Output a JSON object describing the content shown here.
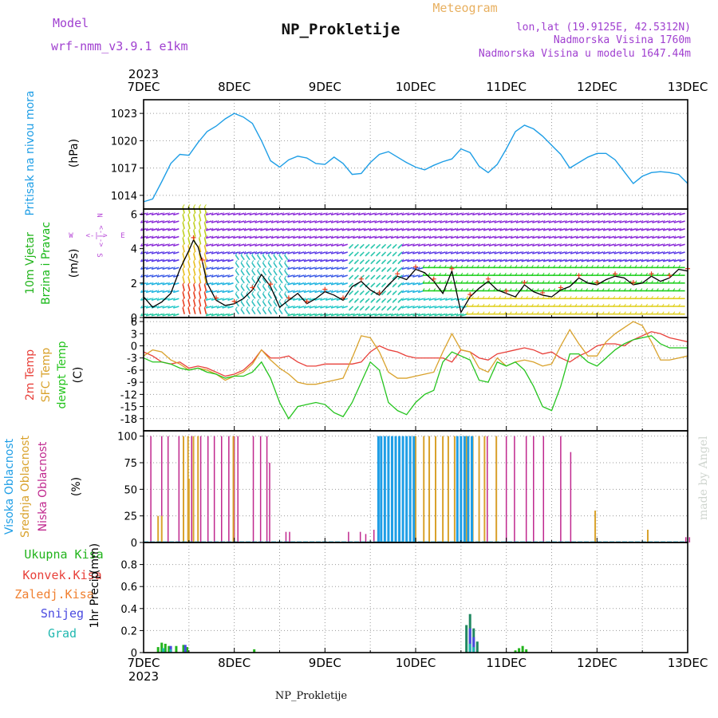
{
  "header": {
    "model_label": "Model",
    "model_name": "wrf-nmm_v3.9.1 e1km",
    "title": "NP_Prokletije",
    "subtitle": "Meteogram",
    "coords": "lon,lat (19.9125E, 42.5312N)",
    "elevation": "Nadmorska Visina 1760m",
    "model_elevation": "Nadmorska Visina u modelu 1647.44m"
  },
  "footer": {
    "station": "NP_Prokletije",
    "credit": "made by Angel"
  },
  "colors": {
    "pressure": "#1e9ee6",
    "temp2m": "#e8403a",
    "sfc": "#d9a22c",
    "dewpt": "#25c41e",
    "wind_title": "#22b41c",
    "wind_sub": "#18b818",
    "compass": "#b84ad8",
    "cloud_high": "#1e9ee6",
    "cloud_mid": "#d9a22c",
    "cloud_low": "#c0288e",
    "precip_total": "#22b41c",
    "precip_conv": "#e8403a",
    "precip_frz": "#f08030",
    "precip_snow": "#4a4ae0",
    "precip_grad": "#22b8b0",
    "header_purple": "#a040d0",
    "header_orange": "#e8b060"
  },
  "chart_data": [
    {
      "type": "line",
      "panel": "pressure",
      "ylabel_title": "Pritisak na nivou mora",
      "ylabel_unit": "(hPa)",
      "year": "2023",
      "x_ticks": [
        "7DEC",
        "8DEC",
        "9DEC",
        "10DEC",
        "11DEC",
        "12DEC",
        "13DEC"
      ],
      "ylim": [
        1012.5,
        1024.5
      ],
      "y_ticks": [
        1014,
        1017,
        1020,
        1023
      ],
      "grid": true,
      "series": [
        {
          "name": "Pritisak na nivou mora",
          "x": [
            0,
            0.1,
            0.2,
            0.3,
            0.4,
            0.5,
            0.6,
            0.7,
            0.8,
            0.9,
            1.0,
            1.1,
            1.2,
            1.3,
            1.4,
            1.5,
            1.6,
            1.7,
            1.8,
            1.9,
            2.0,
            2.1,
            2.2,
            2.3,
            2.4,
            2.5,
            2.6,
            2.7,
            2.8,
            2.9,
            3.0,
            3.1,
            3.2,
            3.3,
            3.4,
            3.5,
            3.6,
            3.7,
            3.8,
            3.9,
            4.0,
            4.1,
            4.2,
            4.3,
            4.4,
            4.5,
            4.6,
            4.7,
            4.8,
            4.9,
            5.0,
            5.1,
            5.2,
            5.3,
            5.4,
            5.5,
            5.6,
            5.7,
            5.8,
            5.9,
            6.0
          ],
          "values": [
            1013.3,
            1013.6,
            1015.5,
            1017.5,
            1018.5,
            1018.4,
            1019.8,
            1021.0,
            1021.6,
            1022.4,
            1023.0,
            1022.6,
            1021.9,
            1020.0,
            1017.8,
            1017.1,
            1017.9,
            1018.3,
            1018.1,
            1017.5,
            1017.4,
            1018.2,
            1017.5,
            1016.3,
            1016.4,
            1017.6,
            1018.5,
            1018.8,
            1018.2,
            1017.6,
            1017.1,
            1016.8,
            1017.3,
            1017.7,
            1018.0,
            1019.1,
            1018.7,
            1017.2,
            1016.5,
            1017.4,
            1019.1,
            1021.0,
            1021.7,
            1021.3,
            1020.5,
            1019.5,
            1018.5,
            1017.0,
            1017.6,
            1018.2,
            1018.6,
            1018.6,
            1017.9,
            1016.6,
            1015.3,
            1016.1,
            1016.5,
            1016.6,
            1016.5,
            1016.3,
            1015.3
          ]
        }
      ]
    },
    {
      "type": "line",
      "panel": "wind",
      "ylabel_title1": "10m Vjetar",
      "ylabel_title2": "Brzina i Pravac",
      "ylabel_unit": "(m/s)",
      "compass": {
        "north": "N",
        "south": "S",
        "west": "W",
        "east": "E",
        "arrows": "<-|->"
      },
      "ylim": [
        0,
        6.3
      ],
      "y_ticks": [
        0,
        2,
        4,
        6
      ],
      "grid": false,
      "barb_levels": [
        0.2,
        0.65,
        1.1,
        1.55,
        2.0,
        2.45,
        2.9,
        3.35,
        3.8,
        4.25,
        4.7,
        5.15,
        5.6,
        6.05
      ],
      "series": [
        {
          "name": "10m Vjetar",
          "x": [
            0,
            0.1,
            0.2,
            0.3,
            0.4,
            0.5,
            0.55,
            0.6,
            0.65,
            0.7,
            0.8,
            0.9,
            1.0,
            1.1,
            1.2,
            1.3,
            1.4,
            1.5,
            1.6,
            1.7,
            1.8,
            1.9,
            2.0,
            2.1,
            2.2,
            2.3,
            2.4,
            2.5,
            2.6,
            2.7,
            2.8,
            2.9,
            3.0,
            3.1,
            3.2,
            3.3,
            3.4,
            3.5,
            3.6,
            3.7,
            3.8,
            3.9,
            4.0,
            4.1,
            4.2,
            4.3,
            4.4,
            4.5,
            4.6,
            4.7,
            4.8,
            4.9,
            5.0,
            5.1,
            5.2,
            5.3,
            5.4,
            5.5,
            5.6,
            5.7,
            5.8,
            5.9,
            6.0
          ],
          "values": [
            1.2,
            0.6,
            0.9,
            1.4,
            2.8,
            3.9,
            4.5,
            4.1,
            3.2,
            2.0,
            1.0,
            0.7,
            0.8,
            1.1,
            1.6,
            2.5,
            1.8,
            0.6,
            1.0,
            1.4,
            0.8,
            1.1,
            1.5,
            1.3,
            1.0,
            1.8,
            2.1,
            1.6,
            1.3,
            1.9,
            2.4,
            2.2,
            2.8,
            2.6,
            2.1,
            1.4,
            2.7,
            0.3,
            1.2,
            1.7,
            2.1,
            1.6,
            1.4,
            1.2,
            1.9,
            1.5,
            1.3,
            1.2,
            1.6,
            1.8,
            2.3,
            2.0,
            1.9,
            2.2,
            2.4,
            2.3,
            1.9,
            2.0,
            2.4,
            2.1,
            2.3,
            2.8,
            2.7
          ]
        }
      ]
    },
    {
      "type": "line",
      "panel": "temperature",
      "ylabel_titles": [
        "2m Temp",
        "SFC Temp",
        "dewpt Temp"
      ],
      "ylabel_unit": "(C)",
      "ylim": [
        -21,
        7
      ],
      "y_ticks": [
        -18,
        -15,
        -12,
        -9,
        -6,
        -3,
        0,
        3,
        6
      ],
      "grid": true,
      "x": [
        0,
        0.1,
        0.2,
        0.3,
        0.4,
        0.5,
        0.6,
        0.7,
        0.8,
        0.9,
        1.0,
        1.1,
        1.2,
        1.3,
        1.4,
        1.5,
        1.6,
        1.7,
        1.8,
        1.9,
        2.0,
        2.1,
        2.2,
        2.3,
        2.4,
        2.5,
        2.6,
        2.7,
        2.8,
        2.9,
        3.0,
        3.1,
        3.2,
        3.3,
        3.4,
        3.5,
        3.6,
        3.7,
        3.8,
        3.9,
        4.0,
        4.1,
        4.2,
        4.3,
        4.4,
        4.5,
        4.6,
        4.7,
        4.8,
        4.9,
        5.0,
        5.1,
        5.2,
        5.3,
        5.4,
        5.5,
        5.6,
        5.7,
        5.8,
        5.9,
        6.0
      ],
      "series": [
        {
          "name": "2m Temp",
          "values": [
            -1.5,
            -2.5,
            -4.0,
            -4.5,
            -4.0,
            -5.5,
            -5.0,
            -5.5,
            -6.5,
            -7.5,
            -7.0,
            -6.0,
            -4.0,
            -1.0,
            -3.0,
            -3.0,
            -2.5,
            -4.0,
            -5.0,
            -5.0,
            -4.5,
            -4.5,
            -4.5,
            -4.5,
            -4.0,
            -1.5,
            0.0,
            -1.0,
            -1.5,
            -2.5,
            -3.0,
            -3.0,
            -3.0,
            -3.0,
            -4.0,
            -1.0,
            -1.5,
            -3.0,
            -3.5,
            -2.0,
            -1.5,
            -1.0,
            -0.5,
            -1.0,
            -2.0,
            -1.5,
            -3.0,
            -4.0,
            -2.5,
            -1.5,
            0.0,
            0.5,
            0.5,
            0.0,
            1.5,
            2.5,
            3.5,
            3.0,
            2.0,
            1.5,
            1.0
          ]
        },
        {
          "name": "SFC Temp",
          "values": [
            -2.5,
            -1.0,
            -1.5,
            -3.5,
            -4.5,
            -6.0,
            -5.5,
            -6.0,
            -7.0,
            -8.5,
            -7.5,
            -6.5,
            -4.5,
            -1.0,
            -3.5,
            -5.5,
            -7.0,
            -9.0,
            -9.5,
            -9.5,
            -9.0,
            -8.5,
            -8.0,
            -3.0,
            2.5,
            2.0,
            -1.5,
            -6.5,
            -8.0,
            -8.0,
            -7.5,
            -7.0,
            -6.5,
            -1.5,
            3.0,
            -1.0,
            -1.5,
            -5.5,
            -6.5,
            -3.0,
            -5.0,
            -4.0,
            -3.5,
            -4.0,
            -5.0,
            -4.5,
            0.0,
            4.0,
            0.5,
            -2.5,
            -2.5,
            1.0,
            3.0,
            4.5,
            6.0,
            5.0,
            1.0,
            -3.5,
            -3.5,
            -3.0,
            -2.5
          ]
        },
        {
          "name": "dewpt Temp",
          "values": [
            -3.0,
            -4.0,
            -4.0,
            -4.5,
            -5.5,
            -6.0,
            -5.5,
            -6.5,
            -7.0,
            -8.0,
            -7.5,
            -7.5,
            -6.5,
            -4.0,
            -8.0,
            -14.0,
            -18.0,
            -15.0,
            -14.5,
            -14.0,
            -14.5,
            -16.5,
            -17.5,
            -14.0,
            -9.0,
            -4.0,
            -6.0,
            -14.0,
            -16.0,
            -17.0,
            -14.0,
            -12.0,
            -11.0,
            -4.0,
            -1.5,
            -2.5,
            -3.5,
            -8.5,
            -9.0,
            -4.0,
            -5.0,
            -4.0,
            -6.0,
            -10.0,
            -15.0,
            -16.0,
            -10.0,
            -2.0,
            -2.0,
            -4.0,
            -5.0,
            -3.0,
            -1.0,
            0.5,
            1.5,
            2.0,
            2.5,
            0.5,
            -0.5,
            -0.5,
            -0.5
          ]
        }
      ]
    },
    {
      "type": "bar",
      "panel": "cloud",
      "ylabel_titles": [
        "Visoka Oblacnost",
        "Srednja Oblacnost",
        "Niska Oblacnost"
      ],
      "ylabel_unit": "(%)",
      "ylim": [
        0,
        105
      ],
      "y_ticks": [
        0,
        25,
        50,
        75,
        100
      ],
      "grid": true,
      "series": [
        {
          "name": "Niska Oblacnost",
          "x": [
            0.08,
            0.2,
            0.27,
            0.39,
            0.53,
            0.63,
            0.71,
            0.78,
            0.86,
            0.94,
            1.0,
            1.04,
            1.21,
            1.29,
            1.36,
            1.39,
            1.57,
            1.61,
            2.26,
            2.39,
            2.45,
            2.54,
            2.66,
            3.79,
            3.89,
            4.0,
            4.09,
            4.22,
            4.3,
            4.41,
            4.6,
            4.71,
            5.98,
            6.02
          ],
          "values": [
            100,
            100,
            100,
            100,
            100,
            100,
            100,
            100,
            100,
            100,
            100,
            100,
            100,
            100,
            100,
            75,
            10,
            10,
            10,
            10,
            8,
            12,
            8,
            100,
            100,
            100,
            100,
            100,
            100,
            100,
            100,
            85,
            5,
            5
          ]
        },
        {
          "name": "Srednja Oblacnost",
          "x": [
            0.16,
            0.2,
            0.44,
            0.49,
            0.5,
            0.55,
            0.6,
            0.99,
            3.0,
            3.09,
            3.15,
            3.22,
            3.3,
            3.36,
            3.43,
            3.5,
            3.56,
            3.63,
            3.7,
            3.76,
            3.89,
            4.98,
            5.56
          ],
          "values": [
            25,
            25,
            100,
            100,
            60,
            100,
            100,
            100,
            100,
            100,
            100,
            100,
            100,
            100,
            100,
            100,
            100,
            100,
            100,
            100,
            100,
            30,
            12
          ]
        },
        {
          "name": "Visoka Oblacnost",
          "x": [
            2.59,
            2.62,
            2.66,
            2.7,
            2.74,
            2.78,
            2.82,
            2.86,
            2.9,
            2.94,
            2.98,
            3.46,
            3.5,
            3.54,
            3.58,
            3.62
          ],
          "values": [
            100,
            100,
            100,
            100,
            100,
            100,
            100,
            100,
            100,
            100,
            100,
            100,
            100,
            100,
            100,
            100
          ]
        }
      ]
    },
    {
      "type": "bar",
      "panel": "precip",
      "legend": [
        "Ukupna Kisa",
        "Konvek.Kisa",
        "Zaledj.Kisa",
        "Snijeg",
        "Grad"
      ],
      "ylabel_title": "1hr Precip",
      "ylabel_unit": "(mm)",
      "ylim": [
        0,
        1.0
      ],
      "y_ticks": [
        0,
        0.2,
        0.4,
        0.6,
        0.8
      ],
      "grid": true,
      "year": "2023",
      "x_ticks": [
        "7DEC",
        "8DEC",
        "9DEC",
        "10DEC",
        "11DEC",
        "12DEC",
        "13DEC"
      ],
      "series": [
        {
          "name": "Ukupna Kisa",
          "x": [
            0.16,
            0.2,
            0.24,
            0.28,
            0.36,
            0.44,
            0.48,
            1.22,
            3.56,
            3.6,
            3.64,
            3.68,
            4.1,
            4.14,
            4.18,
            4.22
          ],
          "values": [
            0.05,
            0.09,
            0.08,
            0.06,
            0.06,
            0.07,
            0.05,
            0.03,
            0.25,
            0.35,
            0.22,
            0.1,
            0.02,
            0.04,
            0.06,
            0.03
          ]
        },
        {
          "name": "Snijeg",
          "x": [
            0.3,
            0.46,
            3.6,
            3.64
          ],
          "values": [
            0.06,
            0.07,
            0.22,
            0.14
          ]
        },
        {
          "name": "Grad",
          "x": [
            0.2,
            0.28,
            3.58,
            3.62
          ],
          "values": [
            0.04,
            0.03,
            0.08,
            0.05
          ]
        }
      ]
    }
  ]
}
